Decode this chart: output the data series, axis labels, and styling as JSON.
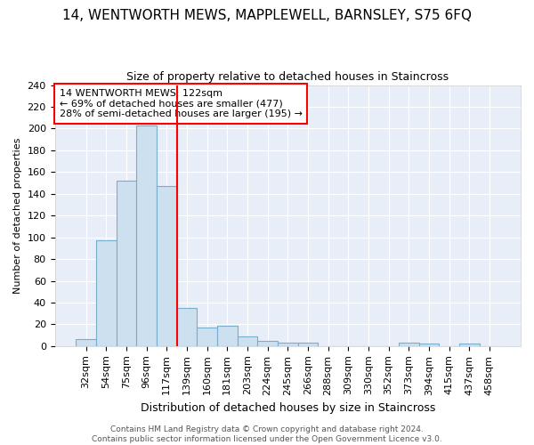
{
  "title": "14, WENTWORTH MEWS, MAPPLEWELL, BARNSLEY, S75 6FQ",
  "subtitle": "Size of property relative to detached houses in Staincross",
  "xlabel": "Distribution of detached houses by size in Staincross",
  "ylabel": "Number of detached properties",
  "bar_labels": [
    "32sqm",
    "54sqm",
    "75sqm",
    "96sqm",
    "117sqm",
    "139sqm",
    "160sqm",
    "181sqm",
    "203sqm",
    "224sqm",
    "245sqm",
    "266sqm",
    "288sqm",
    "309sqm",
    "330sqm",
    "352sqm",
    "373sqm",
    "394sqm",
    "415sqm",
    "437sqm",
    "458sqm"
  ],
  "bar_values": [
    6,
    97,
    152,
    203,
    147,
    35,
    17,
    19,
    9,
    5,
    3,
    3,
    0,
    0,
    0,
    0,
    3,
    2,
    0,
    2,
    0
  ],
  "bar_color": "#cce0f0",
  "bar_edge_color": "#7aaccc",
  "vline_x_index": 4.5,
  "vline_color": "red",
  "annotation_text": "14 WENTWORTH MEWS: 122sqm\n← 69% of detached houses are smaller (477)\n28% of semi-detached houses are larger (195) →",
  "annotation_box_color": "white",
  "annotation_box_edge": "red",
  "ylim": [
    0,
    240
  ],
  "yticks": [
    0,
    20,
    40,
    60,
    80,
    100,
    120,
    140,
    160,
    180,
    200,
    220,
    240
  ],
  "footer_text": "Contains HM Land Registry data © Crown copyright and database right 2024.\nContains public sector information licensed under the Open Government Licence v3.0.",
  "fig_bg_color": "#ffffff",
  "plot_bg_color": "#e8eef8",
  "grid_color": "#ffffff",
  "title_fontsize": 11,
  "subtitle_fontsize": 9,
  "xlabel_fontsize": 9,
  "ylabel_fontsize": 8,
  "tick_fontsize": 8,
  "annotation_fontsize": 8,
  "footer_fontsize": 6.5
}
